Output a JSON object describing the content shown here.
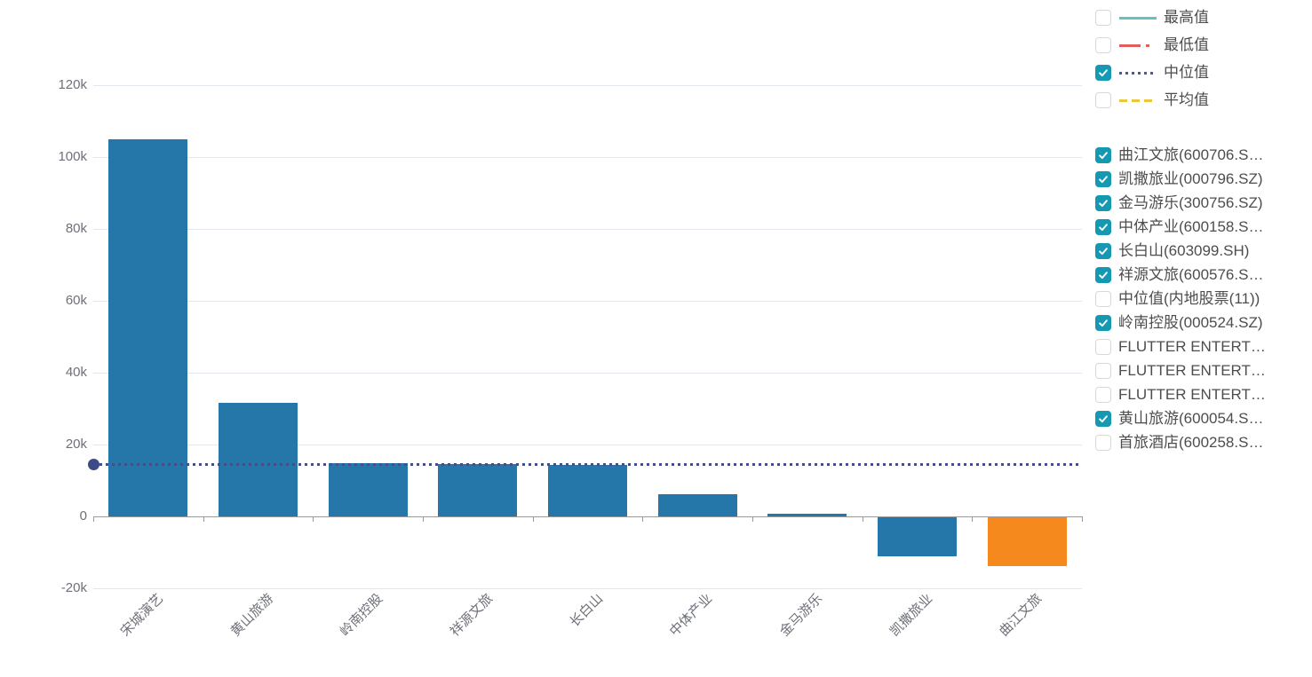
{
  "chart_data": {
    "type": "bar",
    "title": "",
    "xlabel": "",
    "ylabel": "",
    "categories": [
      "宋城演艺",
      "黄山旅游",
      "岭南控股",
      "祥源文旅",
      "长白山",
      "中体产业",
      "金马游乐",
      "凯撒旅业",
      "曲江文旅"
    ],
    "values": [
      105000,
      31500,
      14800,
      14600,
      14400,
      6100,
      700,
      -10800,
      -13500
    ],
    "bar_colors": [
      "#2577a9",
      "#2577a9",
      "#2577a9",
      "#2577a9",
      "#2577a9",
      "#2577a9",
      "#2577a9",
      "#2577a9",
      "#f5891d"
    ],
    "median_value": 14500,
    "median_line": {
      "color": "#434f8c",
      "dot_color": "#3d4a86",
      "style": "dotted"
    },
    "y_ticks": [
      {
        "label": "120k",
        "value": 120000
      },
      {
        "label": "100k",
        "value": 100000
      },
      {
        "label": "80k",
        "value": 80000
      },
      {
        "label": "60k",
        "value": 60000
      },
      {
        "label": "40k",
        "value": 40000
      },
      {
        "label": "20k",
        "value": 20000
      },
      {
        "label": "0",
        "value": 0
      },
      {
        "label": "-20k",
        "value": -20000
      }
    ],
    "ylim": [
      -28000,
      135000
    ],
    "grid": true,
    "legend_position": "right"
  },
  "stat_legend": {
    "items": [
      {
        "label": "最高值",
        "checked": false,
        "color": "#5ec3c1",
        "style": "solid"
      },
      {
        "label": "最低值",
        "checked": false,
        "color": "#e0605e",
        "style": "dashdot"
      },
      {
        "label": "中位值",
        "checked": true,
        "color": "#4a569e",
        "style": "dotted"
      },
      {
        "label": "平均值",
        "checked": false,
        "color": "#e9c83f",
        "style": "dashed"
      }
    ]
  },
  "stock_legend": {
    "items": [
      {
        "label": "曲江文旅(600706.S…",
        "checked": true
      },
      {
        "label": "凯撒旅业(000796.SZ)",
        "checked": true
      },
      {
        "label": "金马游乐(300756.SZ)",
        "checked": true
      },
      {
        "label": "中体产业(600158.S…",
        "checked": true
      },
      {
        "label": "长白山(603099.SH)",
        "checked": true
      },
      {
        "label": "祥源文旅(600576.S…",
        "checked": true
      },
      {
        "label": "中位值(内地股票(11))",
        "checked": false
      },
      {
        "label": "岭南控股(000524.SZ)",
        "checked": true
      },
      {
        "label": "FLUTTER ENTERT…",
        "checked": false
      },
      {
        "label": "FLUTTER ENTERT…",
        "checked": false
      },
      {
        "label": "FLUTTER ENTERT…",
        "checked": false
      },
      {
        "label": "黄山旅游(600054.S…",
        "checked": true
      },
      {
        "label": "首旅酒店(600258.S…",
        "checked": false
      }
    ]
  },
  "colors": {
    "checkbox_checked": "#1598b2",
    "bar_default": "#2577a9",
    "bar_highlight": "#f5891d",
    "grid": "#e2e6f2",
    "axis": "#9a9a9a",
    "tick_text": "#6e7079",
    "legend_text": "#4d4d4d"
  }
}
